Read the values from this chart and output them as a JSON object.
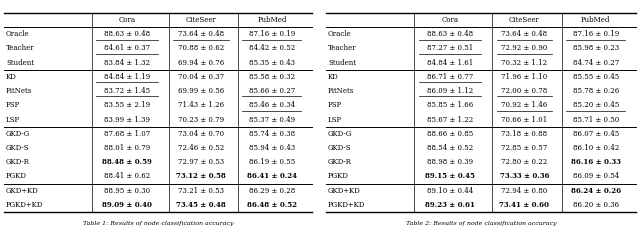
{
  "table1": {
    "columns": [
      "",
      "Cora",
      "CiteSeer",
      "PubMed"
    ],
    "rows": [
      {
        "method": "Oracle",
        "vals": [
          "88.63 ± 0.48",
          "73.64 ± 0.48",
          "87.16 ± 0.19"
        ],
        "underline": [
          true,
          true,
          true
        ],
        "bold": [
          false,
          false,
          false
        ]
      },
      {
        "method": "Teacher",
        "vals": [
          "84.61 ± 0.37",
          "70.88 ± 0.62",
          "84.42 ± 0.52"
        ],
        "underline": [
          true,
          false,
          false
        ],
        "bold": [
          false,
          false,
          false
        ]
      },
      {
        "method": "Student",
        "vals": [
          "83.84 ± 1.32",
          "69.94 ± 0.76",
          "85.35 ± 0.43"
        ],
        "underline": [
          false,
          false,
          false
        ],
        "bold": [
          false,
          false,
          false
        ]
      },
      {
        "method": "KD",
        "vals": [
          "84.84 ± 1.19",
          "70.04 ± 0.37",
          "85.58 ± 0.32"
        ],
        "underline": [
          true,
          false,
          false
        ],
        "bold": [
          false,
          false,
          false
        ]
      },
      {
        "method": "FitNets",
        "vals": [
          "83.72 ± 1.45",
          "69.99 ± 0.56",
          "85.66 ± 0.27"
        ],
        "underline": [
          true,
          false,
          true
        ],
        "bold": [
          false,
          false,
          false
        ]
      },
      {
        "method": "FSP",
        "vals": [
          "83.55 ± 2.19",
          "71.43 ± 1.26",
          "85.46 ± 0.34"
        ],
        "underline": [
          false,
          false,
          true
        ],
        "bold": [
          false,
          false,
          false
        ]
      },
      {
        "method": "LSP",
        "vals": [
          "83.99 ± 1.39",
          "70.23 ± 0.79",
          "85.37 ± 0.49"
        ],
        "underline": [
          false,
          false,
          false
        ],
        "bold": [
          false,
          false,
          false
        ]
      },
      {
        "method": "GKD-G",
        "vals": [
          "87.68 ± 1.07",
          "73.04 ± 0.70",
          "85.74 ± 0.38"
        ],
        "underline": [
          false,
          false,
          false
        ],
        "bold": [
          false,
          false,
          false
        ]
      },
      {
        "method": "GKD-S",
        "vals": [
          "88.01 ± 0.79",
          "72.46 ± 0.52",
          "85.94 ± 0.43"
        ],
        "underline": [
          false,
          false,
          false
        ],
        "bold": [
          false,
          false,
          false
        ]
      },
      {
        "method": "GKD-R",
        "vals": [
          "88.48 ± 0.59",
          "72.97 ± 0.53",
          "86.19 ± 0.55"
        ],
        "underline": [
          false,
          false,
          false
        ],
        "bold": [
          true,
          false,
          false
        ]
      },
      {
        "method": "PGKD",
        "vals": [
          "88.41 ± 0.62",
          "73.12 ± 0.58",
          "86.41 ± 0.24"
        ],
        "underline": [
          false,
          false,
          false
        ],
        "bold": [
          false,
          true,
          true
        ]
      },
      {
        "method": "GKD+KD",
        "vals": [
          "88.95 ± 0.30",
          "73.21 ± 0.53",
          "86.29 ± 0.28"
        ],
        "underline": [
          false,
          false,
          false
        ],
        "bold": [
          false,
          false,
          false
        ]
      },
      {
        "method": "PGKD+KD",
        "vals": [
          "89.09 ± 0.40",
          "73.45 ± 0.48",
          "86.48 ± 0.52"
        ],
        "underline": [
          false,
          false,
          false
        ],
        "bold": [
          true,
          true,
          true
        ]
      }
    ],
    "separators_after": [
      2,
      6,
      10
    ]
  },
  "table2": {
    "columns": [
      "",
      "Cora",
      "CiteSeer",
      "PubMed"
    ],
    "rows": [
      {
        "method": "Oracle",
        "vals": [
          "88.63 ± 0.48",
          "73.64 ± 0.48",
          "87.16 ± 0.19"
        ],
        "underline": [
          true,
          true,
          true
        ],
        "bold": [
          false,
          false,
          false
        ]
      },
      {
        "method": "Teacher",
        "vals": [
          "87.27 ± 0.51",
          "72.92 ± 0.90",
          "85.98 ± 0.23"
        ],
        "underline": [
          true,
          true,
          false
        ],
        "bold": [
          false,
          false,
          false
        ]
      },
      {
        "method": "Student",
        "vals": [
          "84.84 ± 1.61",
          "70.32 ± 1.12",
          "84.74 ± 0.27"
        ],
        "underline": [
          false,
          false,
          false
        ],
        "bold": [
          false,
          false,
          false
        ]
      },
      {
        "method": "KD",
        "vals": [
          "86.71 ± 0.77",
          "71.96 ± 1.10",
          "85.55 ± 0.45"
        ],
        "underline": [
          true,
          false,
          false
        ],
        "bold": [
          false,
          false,
          false
        ]
      },
      {
        "method": "FitNets",
        "vals": [
          "86.09 ± 1.12",
          "72.00 ± 0.78",
          "85.78 ± 0.26"
        ],
        "underline": [
          true,
          true,
          false
        ],
        "bold": [
          false,
          false,
          false
        ]
      },
      {
        "method": "FSP",
        "vals": [
          "85.85 ± 1.66",
          "70.92 ± 1.46",
          "85.20 ± 0.45"
        ],
        "underline": [
          false,
          true,
          true
        ],
        "bold": [
          false,
          false,
          false
        ]
      },
      {
        "method": "LSP",
        "vals": [
          "85.67 ± 1.22",
          "70.66 ± 1.01",
          "85.71 ± 0.50"
        ],
        "underline": [
          false,
          false,
          false
        ],
        "bold": [
          false,
          false,
          false
        ]
      },
      {
        "method": "GKD-G",
        "vals": [
          "88.66 ± 0.85",
          "73.18 ± 0.88",
          "86.07 ± 0.45"
        ],
        "underline": [
          false,
          false,
          false
        ],
        "bold": [
          false,
          false,
          false
        ]
      },
      {
        "method": "GKD-S",
        "vals": [
          "88.54 ± 0.52",
          "72.85 ± 0.57",
          "86.10 ± 0.42"
        ],
        "underline": [
          false,
          false,
          false
        ],
        "bold": [
          false,
          false,
          false
        ]
      },
      {
        "method": "GKD-R",
        "vals": [
          "88.98 ± 0.39",
          "72.80 ± 0.22",
          "86.16 ± 0.33"
        ],
        "underline": [
          false,
          false,
          false
        ],
        "bold": [
          false,
          false,
          true
        ]
      },
      {
        "method": "PGKD",
        "vals": [
          "89.15 ± 0.45",
          "73.33 ± 0.36",
          "86.09 ± 0.54"
        ],
        "underline": [
          false,
          false,
          false
        ],
        "bold": [
          true,
          true,
          false
        ]
      },
      {
        "method": "GKD+KD",
        "vals": [
          "89.10 ± 0.44",
          "72.94 ± 0.80",
          "86.24 ± 0.26"
        ],
        "underline": [
          false,
          false,
          false
        ],
        "bold": [
          false,
          false,
          true
        ]
      },
      {
        "method": "PGKD+KD",
        "vals": [
          "89.23 ± 0.61",
          "73.41 ± 0.60",
          "86.20 ± 0.36"
        ],
        "underline": [
          false,
          false,
          false
        ],
        "bold": [
          true,
          true,
          false
        ]
      }
    ],
    "separators_after": [
      2,
      6,
      10
    ]
  },
  "caption1": "Table 1: Results of node classification accuracy",
  "caption2": "Table 2: Results of node classification accuracy",
  "bg_color": "#ffffff",
  "text_color": "#000000"
}
